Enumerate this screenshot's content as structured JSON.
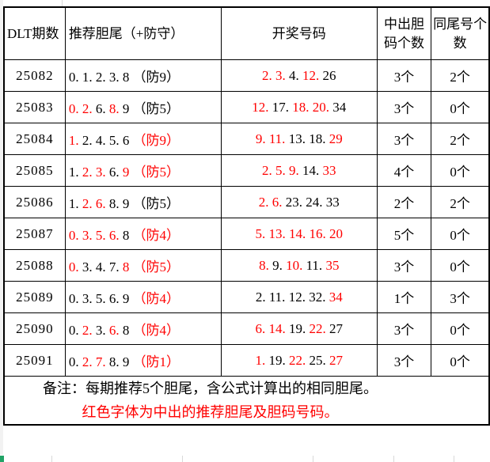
{
  "table": {
    "headers": [
      "DLT期数",
      "推荐胆尾（+防守）",
      "开奖号码",
      "中出胆码个数",
      "同尾号个数"
    ],
    "rows": [
      {
        "period": "25082",
        "rec": [
          {
            "t": "0. ",
            "r": false
          },
          {
            "t": "1. ",
            "r": false
          },
          {
            "t": "2. ",
            "r": false
          },
          {
            "t": "3. ",
            "r": false
          },
          {
            "t": "8 ",
            "r": false
          },
          {
            "t": "（防9）",
            "r": false
          }
        ],
        "win": [
          {
            "t": "2. ",
            "r": true
          },
          {
            "t": "3. ",
            "r": true
          },
          {
            "t": "4. ",
            "r": false
          },
          {
            "t": "12. ",
            "r": true
          },
          {
            "t": "26",
            "r": false
          }
        ],
        "hit": "3个",
        "same": "2个"
      },
      {
        "period": "25083",
        "rec": [
          {
            "t": "0. ",
            "r": true
          },
          {
            "t": "2. ",
            "r": true
          },
          {
            "t": "6. ",
            "r": false
          },
          {
            "t": "8. ",
            "r": true
          },
          {
            "t": "9 ",
            "r": false
          },
          {
            "t": "（防5）",
            "r": false
          }
        ],
        "win": [
          {
            "t": "12. ",
            "r": true
          },
          {
            "t": "17. ",
            "r": false
          },
          {
            "t": "18. ",
            "r": true
          },
          {
            "t": "20. ",
            "r": true
          },
          {
            "t": "34",
            "r": false
          }
        ],
        "hit": "3个",
        "same": "0个"
      },
      {
        "period": "25084",
        "rec": [
          {
            "t": "1. ",
            "r": true
          },
          {
            "t": "2. ",
            "r": false
          },
          {
            "t": "4. ",
            "r": false
          },
          {
            "t": "5. ",
            "r": false
          },
          {
            "t": "6 ",
            "r": false
          },
          {
            "t": "（防9）",
            "r": true
          }
        ],
        "win": [
          {
            "t": "9. ",
            "r": true
          },
          {
            "t": "11. ",
            "r": true
          },
          {
            "t": "13. ",
            "r": false
          },
          {
            "t": "18. ",
            "r": false
          },
          {
            "t": "29",
            "r": true
          }
        ],
        "hit": "3个",
        "same": "2个"
      },
      {
        "period": "25085",
        "rec": [
          {
            "t": "1. ",
            "r": false
          },
          {
            "t": "2. ",
            "r": true
          },
          {
            "t": "3. ",
            "r": true
          },
          {
            "t": "6. ",
            "r": false
          },
          {
            "t": "9 ",
            "r": true
          },
          {
            "t": "（防5）",
            "r": true
          }
        ],
        "win": [
          {
            "t": "2. ",
            "r": true
          },
          {
            "t": "5. ",
            "r": true
          },
          {
            "t": "9. ",
            "r": true
          },
          {
            "t": "14. ",
            "r": false
          },
          {
            "t": "33",
            "r": true
          }
        ],
        "hit": "4个",
        "same": "0个"
      },
      {
        "period": "25086",
        "rec": [
          {
            "t": "1. ",
            "r": false
          },
          {
            "t": "2. ",
            "r": true
          },
          {
            "t": "6. ",
            "r": true
          },
          {
            "t": "8. ",
            "r": false
          },
          {
            "t": "9 ",
            "r": false
          },
          {
            "t": "（防5）",
            "r": false
          }
        ],
        "win": [
          {
            "t": "2. ",
            "r": true
          },
          {
            "t": "6. ",
            "r": true
          },
          {
            "t": "23. ",
            "r": false
          },
          {
            "t": "24. ",
            "r": false
          },
          {
            "t": "33",
            "r": false
          }
        ],
        "hit": "2个",
        "same": "2个"
      },
      {
        "period": "25087",
        "rec": [
          {
            "t": "0. ",
            "r": true
          },
          {
            "t": "3. ",
            "r": true
          },
          {
            "t": "5. ",
            "r": true
          },
          {
            "t": "6. ",
            "r": true
          },
          {
            "t": "8 ",
            "r": false
          },
          {
            "t": "（防4）",
            "r": true
          }
        ],
        "win": [
          {
            "t": "5. ",
            "r": true
          },
          {
            "t": "13. ",
            "r": true
          },
          {
            "t": "14. ",
            "r": true
          },
          {
            "t": "16. ",
            "r": true
          },
          {
            "t": "20",
            "r": true
          }
        ],
        "hit": "5个",
        "same": "0个"
      },
      {
        "period": "25088",
        "rec": [
          {
            "t": "0. ",
            "r": true
          },
          {
            "t": "3. ",
            "r": false
          },
          {
            "t": "4. ",
            "r": false
          },
          {
            "t": "7. ",
            "r": false
          },
          {
            "t": "8 ",
            "r": true
          },
          {
            "t": "（防5）",
            "r": true
          }
        ],
        "win": [
          {
            "t": "8. ",
            "r": true
          },
          {
            "t": "9. ",
            "r": false
          },
          {
            "t": "10. ",
            "r": true
          },
          {
            "t": "11. ",
            "r": false
          },
          {
            "t": "35",
            "r": true
          }
        ],
        "hit": "3个",
        "same": "0个"
      },
      {
        "period": "25089",
        "rec": [
          {
            "t": "0. ",
            "r": false
          },
          {
            "t": "3. ",
            "r": false
          },
          {
            "t": "5. ",
            "r": false
          },
          {
            "t": "6. ",
            "r": false
          },
          {
            "t": "9 ",
            "r": false
          },
          {
            "t": "（防4）",
            "r": true
          }
        ],
        "win": [
          {
            "t": "2. ",
            "r": false
          },
          {
            "t": "11. ",
            "r": false
          },
          {
            "t": "12. ",
            "r": false
          },
          {
            "t": "32. ",
            "r": false
          },
          {
            "t": "34",
            "r": true
          }
        ],
        "hit": "1个",
        "same": "3个"
      },
      {
        "period": "25090",
        "rec": [
          {
            "t": "0. ",
            "r": false
          },
          {
            "t": "2. ",
            "r": true
          },
          {
            "t": "3. ",
            "r": false
          },
          {
            "t": "6. ",
            "r": true
          },
          {
            "t": "8 ",
            "r": false
          },
          {
            "t": "（防4）",
            "r": true
          }
        ],
        "win": [
          {
            "t": "6. ",
            "r": true
          },
          {
            "t": "14. ",
            "r": true
          },
          {
            "t": "19. ",
            "r": false
          },
          {
            "t": "22. ",
            "r": true
          },
          {
            "t": "27",
            "r": false
          }
        ],
        "hit": "3个",
        "same": "0个"
      },
      {
        "period": "25091",
        "rec": [
          {
            "t": "0. ",
            "r": false
          },
          {
            "t": "2. ",
            "r": true
          },
          {
            "t": "7. ",
            "r": true
          },
          {
            "t": "8. ",
            "r": false
          },
          {
            "t": "9 ",
            "r": false
          },
          {
            "t": "（防1）",
            "r": true
          }
        ],
        "win": [
          {
            "t": "1. ",
            "r": true
          },
          {
            "t": "19. ",
            "r": false
          },
          {
            "t": "22. ",
            "r": true
          },
          {
            "t": "25. ",
            "r": false
          },
          {
            "t": "27",
            "r": true
          }
        ],
        "hit": "3个",
        "same": "0个"
      }
    ]
  },
  "note": {
    "line1": "备注：每期推荐5个胆尾，含公式计算出的相同胆尾。",
    "line2": "红色字体为中出的推荐胆尾及胆码号码。"
  },
  "colors": {
    "red": "#ff0000",
    "border": "#000000",
    "grid_line": "#d9d9d9",
    "selection_green": "#21a366"
  }
}
